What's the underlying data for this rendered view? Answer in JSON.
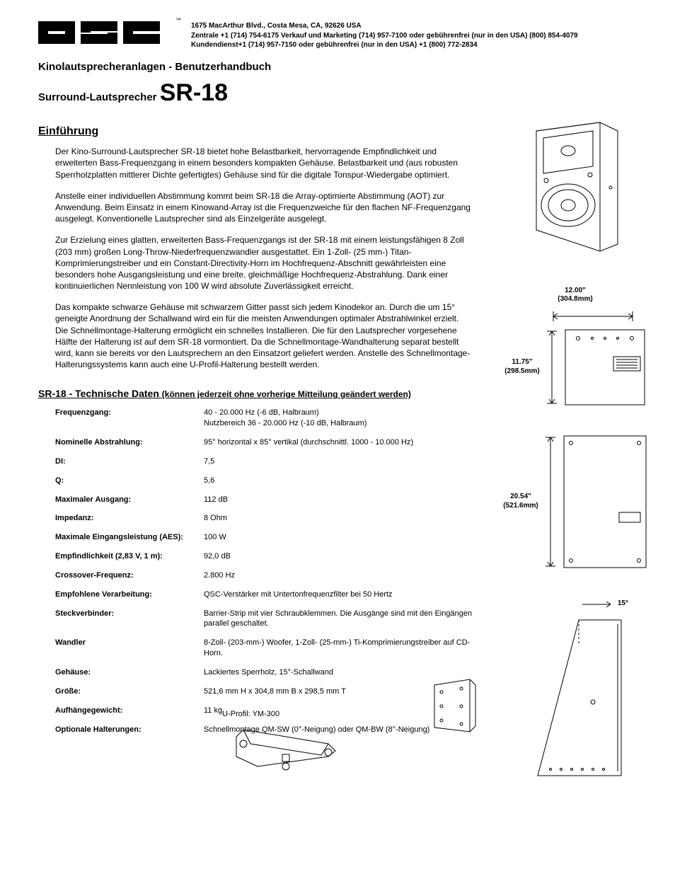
{
  "company": {
    "address_line1": "1675 MacArthur Blvd., Costa Mesa, CA, 92626 USA",
    "address_line2": "Zentrale +1 (714) 754-6175 Verkauf und Marketing (714) 957-7100 oder gebührenfrei (nur in den USA) (800) 854-4079",
    "address_line3": "Kundendienst+1 (714) 957-7150 oder gebührenfrei (nur in den USA) +1 (800) 772-2834",
    "trademark": "™"
  },
  "doc": {
    "subtitle": "Kinolautsprecheranlagen - Benutzerhandbuch",
    "product_prefix": "Surround-Lautsprecher ",
    "product_model": "SR-18"
  },
  "intro": {
    "heading": "Einführung",
    "p1": "Der Kino-Surround-Lautsprecher SR-18 bietet hohe Belastbarkeit, hervorragende Empfindlichkeit und erweiterten Bass-Frequenzgang in einem besonders kompakten Gehäuse. Belastbarkeit und (aus robusten Sperrholzplatten mittlerer Dichte gefertigtes) Gehäuse sind für die digitale Tonspur-Wiedergabe optimiert.",
    "p2": "Anstelle einer individuellen Abstimmung kommt beim SR-18 die Array-optimierte Abstimmung (AOT) zur Anwendung. Beim Einsatz in einem Kinowand-Array ist die Frequenzweiche für den flachen NF-Frequenzgang ausgelegt. Konventionelle Lautsprecher sind als Einzelgeräte ausgelegt.",
    "p3": "Zur Erzielung eines glatten, erweiterten Bass-Frequenzgangs ist der SR-18 mit einem leistungsfähigen 8 Zoll (203 mm) großen Long-Throw-Niederfrequenzwandler ausgestattet. Ein 1-Zoll- (25 mm-) Titan-Komprimierungstreiber und ein Constant-Directivity-Horn im Hochfrequenz-Abschnitt gewährleisten eine besonders hohe Ausgangsleistung und eine breite, gleichmäßige Hochfrequenz-Abstrahlung. Dank einer kontinuierlichen Nennleistung von 100 W wird absolute Zuverlässigkeit erreicht.",
    "p4": "Das kompakte schwarze Gehäuse mit schwarzem Gitter passt sich jedem Kinodekor an. Durch die um 15° geneigte Anordnung der Schallwand wird ein für die meisten Anwendungen optimaler Abstrahlwinkel erzielt. Die Schnellmontage-Halterung ermöglicht ein schnelles Installieren. Die für den Lautsprecher vorgesehene Hälfte der Halterung ist auf dem SR-18 vormontiert. Da die Schnellmontage-Wandhalterung separat bestellt wird, kann sie bereits vor den Lautsprechern an den Einsatzort geliefert werden. Anstelle des Schnellmontage-Halterungssystems kann auch eine U-Profil-Halterung bestellt werden."
  },
  "spec_heading": {
    "prefix": "SR-18 - Technische Daten ",
    "suffix": "(können jederzeit ohne vorherige Mitteilung geändert werden)"
  },
  "specs": [
    {
      "label": "Frequenzgang:",
      "value": "40 - 20.000 Hz (-6 dB, Halbraum)\nNutzbereich 36 - 20.000 Hz (-10 dB, Halbraum)"
    },
    {
      "label": "Nominelle Abstrahlung:",
      "value": "95° horizontal x 85° vertikal (durchschnittl. 1000 - 10.000 Hz)"
    },
    {
      "label": "DI:",
      "value": "7,5"
    },
    {
      "label": "Q:",
      "value": "5,6"
    },
    {
      "label": "Maximaler Ausgang:",
      "value": "112 dB"
    },
    {
      "label": "Impedanz:",
      "value": "8 Ohm"
    },
    {
      "label": "Maximale Eingangsleistung (AES):",
      "value": "100 W"
    },
    {
      "label": "Empfindlichkeit (2,83 V, 1 m):",
      "value": "92,0 dB"
    },
    {
      "label": "Crossover-Frequenz:",
      "value": "2.800 Hz"
    },
    {
      "label": "Empfohlene Verarbeitung:",
      "value": "QSC-Verstärker mit Untertonfrequenzfilter bei 50 Hertz"
    },
    {
      "label": "Steckverbinder:",
      "value": "Barrier-Strip mit vier Schraubklemmen. Die Ausgänge sind mit den Eingängen parallel geschaltet."
    },
    {
      "label": "Wandler",
      "value": "8-Zoll- (203-mm-) Woofer, 1-Zoll- (25-mm-) Ti-Komprimierungstreiber auf CD-Horn."
    },
    {
      "label": "Gehäuse:",
      "value": "Lackiertes Sperrholz, 15°-Schallwand"
    },
    {
      "label": "Größe:",
      "value": "521,6 mm H x 304,8 mm B x 298,5 mm T"
    },
    {
      "label": "Aufhängegewicht:",
      "value": " 11 kg"
    },
    {
      "label": "Optionale Halterungen:",
      "value": "Schnellmontage QM-SW (0°-Neigung) oder QM-BW (8°-Neigung)"
    }
  ],
  "specs_extra_line": "U-Profil: YM-300",
  "dimensions": {
    "width_in": "12.00\"",
    "width_mm": "(304.8mm)",
    "depth_in": "11.75\"",
    "depth_mm": "(298.5mm)",
    "height_in": "20.54\"",
    "height_mm": "(521.6mm)",
    "angle": "15°"
  },
  "colors": {
    "line": "#000000",
    "bg": "#ffffff",
    "grid": "#e0e0e0"
  }
}
